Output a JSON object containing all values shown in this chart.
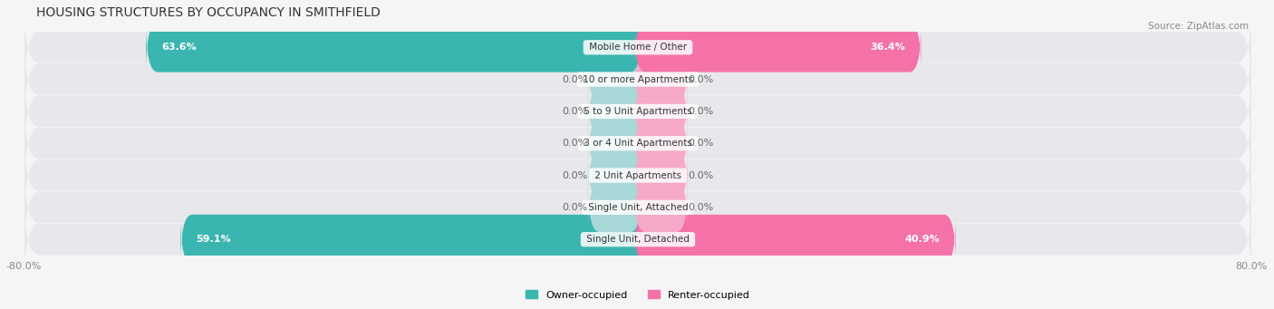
{
  "title": "HOUSING STRUCTURES BY OCCUPANCY IN SMITHFIELD",
  "source": "Source: ZipAtlas.com",
  "categories": [
    "Single Unit, Detached",
    "Single Unit, Attached",
    "2 Unit Apartments",
    "3 or 4 Unit Apartments",
    "5 to 9 Unit Apartments",
    "10 or more Apartments",
    "Mobile Home / Other"
  ],
  "owner_pct": [
    59.1,
    0.0,
    0.0,
    0.0,
    0.0,
    0.0,
    63.6
  ],
  "renter_pct": [
    40.9,
    0.0,
    0.0,
    0.0,
    0.0,
    0.0,
    36.4
  ],
  "owner_color": "#3ab5b0",
  "renter_color": "#f472a8",
  "owner_color_light": "#a8d8d8",
  "renter_color_light": "#f5a8c8",
  "axis_min": -80.0,
  "axis_max": 80.0,
  "axis_labels": [
    "-80.0%",
    "80.0%"
  ],
  "legend_owner": "Owner-occupied",
  "legend_renter": "Renter-occupied",
  "background_color": "#f0f0f0",
  "bar_background": "#e8e8e8",
  "row_bg_color": "#ececec"
}
